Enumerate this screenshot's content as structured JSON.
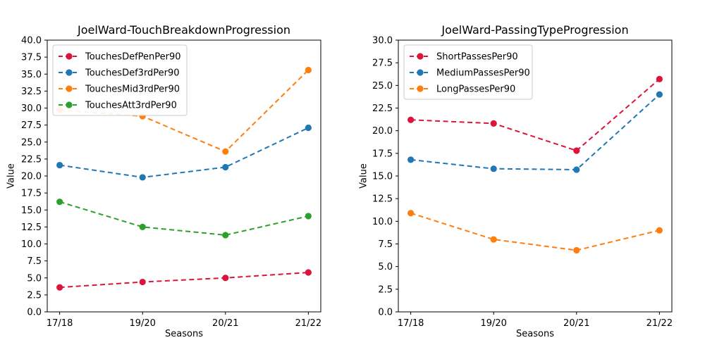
{
  "figure": {
    "background": "#ffffff"
  },
  "colors": {
    "axis": "#000000",
    "legend_border": "#cccccc",
    "red": "#dc143c",
    "blue": "#1f77b4",
    "orange": "#ff7f0e",
    "green": "#2ca02c"
  },
  "chart_data": [
    {
      "type": "line",
      "title": "JoelWard-TouchBreakdownProgression",
      "xlabel": "Seasons",
      "ylabel": "Value",
      "categories": [
        "17/18",
        "19/20",
        "20/21",
        "21/22"
      ],
      "ylim": [
        0,
        40
      ],
      "ytick_step": 2.5,
      "grid": false,
      "line_style": "dashed",
      "marker": "circle",
      "legend_position": "upper-left",
      "series": [
        {
          "name": "TouchesDefPenPer90",
          "color": "#dc143c",
          "values": [
            3.6,
            4.4,
            5.0,
            5.8
          ]
        },
        {
          "name": "TouchesDef3rdPer90",
          "color": "#1f77b4",
          "values": [
            21.6,
            19.8,
            21.3,
            27.1
          ]
        },
        {
          "name": "TouchesMid3rdPer90",
          "color": "#ff7f0e",
          "values": [
            29.7,
            28.8,
            23.6,
            35.6
          ]
        },
        {
          "name": "TouchesAtt3rdPer90",
          "color": "#2ca02c",
          "values": [
            16.2,
            12.5,
            11.3,
            14.1
          ]
        }
      ]
    },
    {
      "type": "line",
      "title": "JoelWard-PassingTypeProgression",
      "xlabel": "Seasons",
      "ylabel": "Value",
      "categories": [
        "17/18",
        "19/20",
        "20/21",
        "21/22"
      ],
      "ylim": [
        0,
        30
      ],
      "ytick_step": 2.5,
      "grid": false,
      "line_style": "dashed",
      "marker": "circle",
      "legend_position": "upper-left",
      "series": [
        {
          "name": "ShortPassesPer90",
          "color": "#dc143c",
          "values": [
            21.2,
            20.8,
            17.8,
            25.7
          ]
        },
        {
          "name": "MediumPassesPer90",
          "color": "#1f77b4",
          "values": [
            16.8,
            15.8,
            15.7,
            24.0
          ]
        },
        {
          "name": "LongPassesPer90",
          "color": "#ff7f0e",
          "values": [
            10.9,
            8.0,
            6.8,
            9.0
          ]
        }
      ]
    }
  ]
}
